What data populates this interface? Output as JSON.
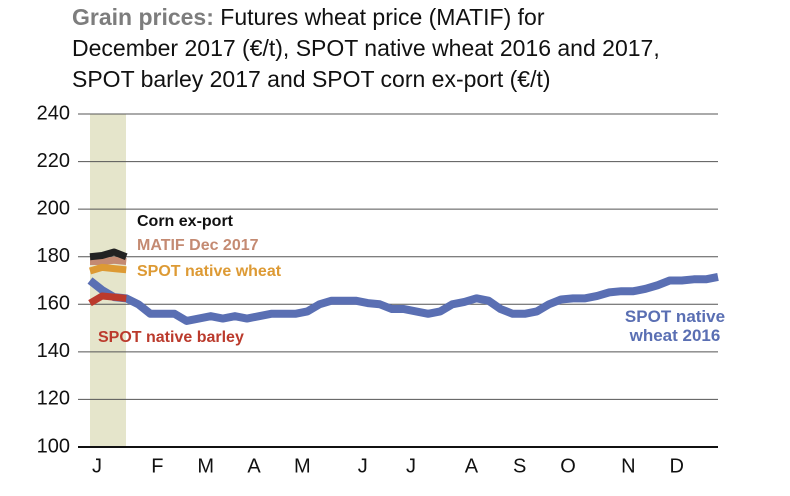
{
  "chart_data": {
    "type": "line",
    "title": "Grain prices:",
    "subtitle": "Futures wheat price (MATIF) for\nDecember 2017 (€/t), SPOT native wheat 2016 and 2017,\nSPOT barley 2017 and SPOT corn ex-port (€/t)",
    "categories": [
      "J",
      null,
      null,
      null,
      null,
      "F",
      null,
      null,
      null,
      "M",
      null,
      null,
      null,
      "A",
      null,
      null,
      null,
      "M",
      null,
      null,
      null,
      null,
      "J",
      null,
      null,
      null,
      "J",
      null,
      null,
      null,
      null,
      "A",
      null,
      null,
      null,
      "S",
      null,
      null,
      null,
      "O",
      null,
      null,
      null,
      null,
      "N",
      null,
      null,
      null,
      "D",
      null,
      null,
      null,
      null
    ],
    "ylim": [
      100,
      240
    ],
    "yticks": [
      100,
      120,
      140,
      160,
      180,
      200,
      220,
      240
    ],
    "grid": true,
    "series": [
      {
        "name": "SPOT native wheat 2016",
        "color": "#5a6fb3",
        "values": [
          170,
          166,
          163,
          162.5,
          160,
          156,
          156,
          156,
          153,
          154,
          155,
          154,
          155,
          154,
          155,
          156,
          156,
          156,
          157,
          160,
          161.5,
          161.5,
          161.5,
          160.5,
          160,
          158,
          158,
          157,
          156,
          157,
          160,
          161,
          162.5,
          161.5,
          158,
          156,
          156,
          157,
          160,
          162,
          162.5,
          162.5,
          163.5,
          165,
          165.5,
          165.5,
          166.5,
          168,
          170,
          170,
          170.5,
          170.5,
          171.5
        ]
      },
      {
        "name": "SPOT native barley",
        "color": "#bb3a2c",
        "values": [
          160.5,
          163.5,
          163,
          162.5,
          null,
          null,
          null,
          null,
          null,
          null,
          null,
          null,
          null,
          null,
          null,
          null,
          null,
          null,
          null,
          null,
          null,
          null,
          null,
          null,
          null,
          null,
          null,
          null,
          null,
          null,
          null,
          null,
          null,
          null,
          null,
          null,
          null,
          null,
          null,
          null,
          null,
          null,
          null,
          null,
          null,
          null,
          null,
          null,
          null,
          null,
          null,
          null,
          null
        ]
      },
      {
        "name": "MATIF Dec 2017",
        "color": "#c48a72",
        "values": [
          178,
          178,
          178.5,
          178,
          null,
          null,
          null,
          null,
          null,
          null,
          null,
          null,
          null,
          null,
          null,
          null,
          null,
          null,
          null,
          null,
          null,
          null,
          null,
          null,
          null,
          null,
          null,
          null,
          null,
          null,
          null,
          null,
          null,
          null,
          null,
          null,
          null,
          null,
          null,
          null,
          null,
          null,
          null,
          null,
          null,
          null,
          null,
          null,
          null,
          null,
          null,
          null,
          null
        ]
      },
      {
        "name": "SPOT native wheat",
        "color": "#dd9a34",
        "values": [
          174,
          175.5,
          175,
          174.5,
          null,
          null,
          null,
          null,
          null,
          null,
          null,
          null,
          null,
          null,
          null,
          null,
          null,
          null,
          null,
          null,
          null,
          null,
          null,
          null,
          null,
          null,
          null,
          null,
          null,
          null,
          null,
          null,
          null,
          null,
          null,
          null,
          null,
          null,
          null,
          null,
          null,
          null,
          null,
          null,
          null,
          null,
          null,
          null,
          null,
          null,
          null,
          null,
          null
        ]
      },
      {
        "name": "Corn ex-port",
        "color": "#222222",
        "values": [
          180,
          180.5,
          182,
          180,
          null,
          null,
          null,
          null,
          null,
          null,
          null,
          null,
          null,
          null,
          null,
          null,
          null,
          null,
          null,
          null,
          null,
          null,
          null,
          null,
          null,
          null,
          null,
          null,
          null,
          null,
          null,
          null,
          null,
          null,
          null,
          null,
          null,
          null,
          null,
          null,
          null,
          null,
          null,
          null,
          null,
          null,
          null,
          null,
          null,
          null,
          null,
          null,
          null
        ]
      }
    ]
  }
}
